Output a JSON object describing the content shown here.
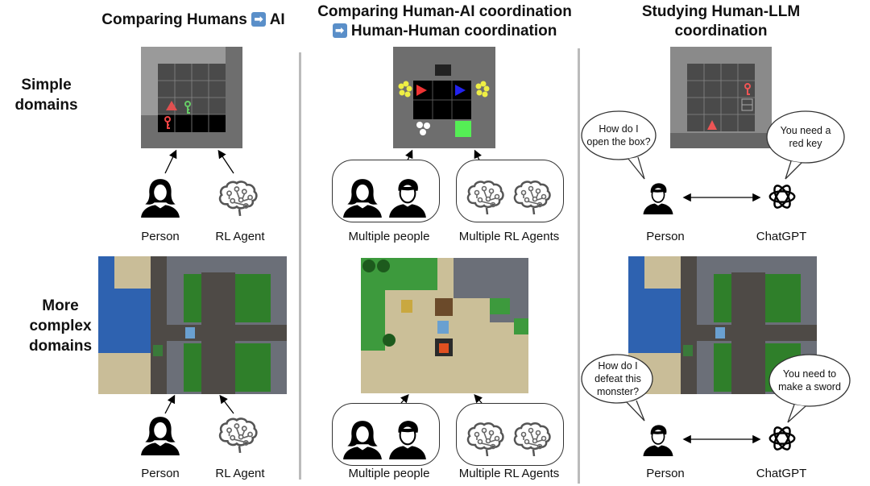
{
  "columns": [
    {
      "title_a": "Comparing Humans",
      "arrow_icon": "right-arrow-emoji",
      "title_b": "AI"
    },
    {
      "title_line1": "Comparing Human-AI coordination",
      "arrow_icon": "right-arrow-emoji",
      "title_line2": "Human-Human coordination"
    },
    {
      "title_line1": "Studying Human-LLM",
      "title_line2": "coordination"
    }
  ],
  "rows": {
    "simple": "Simple domains",
    "complex_line1": "More",
    "complex_line2": "complex",
    "complex_line3": "domains"
  },
  "labels": {
    "person": "Person",
    "rl_agent": "RL Agent",
    "multiple_people": "Multiple people",
    "multiple_rl_agents": "Multiple RL Agents",
    "chatgpt": "ChatGPT"
  },
  "bubbles": {
    "simple_q": "How do I open the box?",
    "simple_a": "You need a red key",
    "complex_q": "How do I defeat this monster?",
    "complex_a": "You need to make a sword"
  },
  "arrow_glyph": "➡"
}
